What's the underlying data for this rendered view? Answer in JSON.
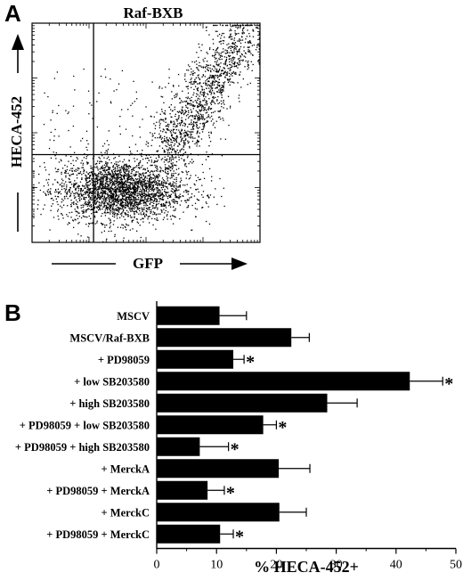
{
  "panels": {
    "a": {
      "letter": "A"
    },
    "b": {
      "letter": "B"
    }
  },
  "chart_data": [
    {
      "type": "scatter",
      "panel": "A",
      "title": "Raf-BXB",
      "xlabel": "GFP",
      "ylabel": "HECA-452",
      "xscale": "log",
      "yscale": "log",
      "xlim": [
        1,
        10000
      ],
      "ylim": [
        1,
        10000
      ],
      "quadrant_gates": {
        "x": 12,
        "y": 40
      },
      "axis_arrows": true,
      "grid": false,
      "legend": "none",
      "population_note": "Most events cluster at low HECA-452 (y 3–30) across x 2–3000; a diagonal double-positive population rises from (x≈300,y≈40) to (x≈5000,y≈8000); sparse scatter elsewhere.",
      "colors": {
        "points": "#000000"
      }
    },
    {
      "type": "bar",
      "orientation": "horizontal",
      "panel": "B",
      "xlabel": "% HECA-452+",
      "ylabel": "",
      "xlim": [
        0,
        50
      ],
      "xticks": [
        0,
        10,
        20,
        30,
        40,
        50
      ],
      "categories": [
        "MSCV",
        "MSCV/Raf-BXB",
        "+ PD98059",
        "+ low SB203580",
        "+ high SB203580",
        "+ PD98059 + low SB203580",
        "+ PD98059 + high SB203580",
        "+ MerckA",
        "+ PD98059 + MerckA",
        "+ MerckC",
        "+ PD98059 + MerckC"
      ],
      "values": [
        10.5,
        22.5,
        12.8,
        42.3,
        28.5,
        17.8,
        7.2,
        20.4,
        8.5,
        20.5,
        10.6
      ],
      "errors": [
        4.5,
        3.0,
        1.8,
        5.5,
        5.0,
        2.2,
        4.8,
        5.2,
        2.8,
        4.5,
        2.2
      ],
      "significant": [
        false,
        false,
        true,
        true,
        false,
        true,
        true,
        false,
        true,
        false,
        true
      ],
      "significance_marker": "*",
      "grid": false,
      "legend": "none",
      "colors": {
        "bars": "#000000"
      }
    }
  ]
}
